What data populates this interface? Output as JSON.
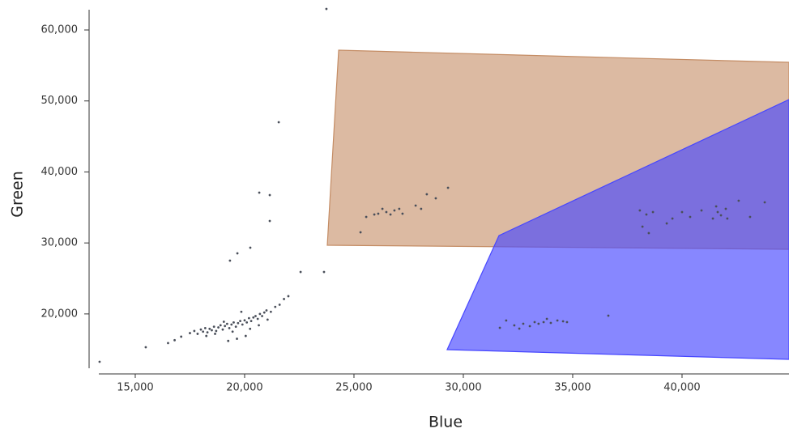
{
  "chart_data": {
    "type": "scatter",
    "x_label": "Blue",
    "y_label": "Green",
    "xlim": [
      12890,
      44890
    ],
    "ylim": [
      12690,
      63080
    ],
    "xticks": [
      {
        "value": 15000,
        "label": "15,000"
      },
      {
        "value": 20000,
        "label": "20,000"
      },
      {
        "value": 25000,
        "label": "25,000"
      },
      {
        "value": 30000,
        "label": "30,000"
      },
      {
        "value": 35000,
        "label": "35,000"
      },
      {
        "value": 40000,
        "label": "40,000"
      }
    ],
    "yticks": [
      {
        "value": 20000,
        "label": "20,000"
      },
      {
        "value": 30000,
        "label": "30,000"
      },
      {
        "value": 40000,
        "label": "40,000"
      },
      {
        "value": 50000,
        "label": "50,000"
      },
      {
        "value": 60000,
        "label": "60,000"
      }
    ],
    "gates": [
      {
        "color": "#c48c64",
        "x": [
          24300,
          44890,
          44890,
          23780
        ],
        "y": [
          57150,
          55440,
          29110,
          29680
        ]
      },
      {
        "color": "#4646ff",
        "x": [
          29260,
          31630,
          44890,
          44890
        ],
        "y": [
          14970,
          31040,
          50200,
          13600
        ]
      }
    ],
    "series": [
      {
        "color": "#4a4f5a",
        "x": [
          23740,
          21560,
          20670,
          21150,
          21150,
          20260,
          19670,
          19330,
          13370,
          15480,
          22560,
          23630,
          25300,
          25560,
          25930,
          26110,
          26300,
          26480,
          26670,
          26850,
          27070,
          27220,
          27820,
          28070,
          28330,
          28740,
          29300,
          38070,
          38190,
          38370,
          38480,
          38670,
          39300,
          39560,
          40000,
          40370,
          40890,
          41410,
          41560,
          41630,
          41780,
          42000,
          42070,
          42590,
          43110,
          43780,
          31670,
          31960,
          32330,
          32560,
          32740,
          33040,
          33260,
          33440,
          33670,
          33820,
          34000,
          34300,
          34560,
          34740,
          36630,
          17500,
          17700,
          17850,
          18000,
          18100,
          18200,
          18300,
          18400,
          18500,
          18600,
          18700,
          18800,
          18900,
          19000,
          19100,
          19200,
          19300,
          19400,
          19500,
          19600,
          19700,
          19800,
          19900,
          20000,
          20100,
          20200,
          20300,
          20400,
          20500,
          20600,
          20700,
          20800,
          20900,
          21000,
          21200,
          21400,
          21600,
          21800,
          22000,
          18250,
          18650,
          19050,
          19450,
          19850,
          20250,
          20650,
          21050,
          16500,
          16800,
          17100,
          19250,
          19650,
          20050
        ],
        "values": [
          62960,
          47000,
          37090,
          36740,
          33100,
          29330,
          28540,
          27510,
          13260,
          15310,
          25910,
          25910,
          31500,
          33670,
          34010,
          34120,
          34810,
          34350,
          34010,
          34580,
          34810,
          34120,
          35260,
          34810,
          36860,
          36290,
          37770,
          34580,
          32300,
          34010,
          31390,
          34350,
          32750,
          33440,
          34350,
          33670,
          34580,
          33440,
          35150,
          34350,
          33890,
          34810,
          33440,
          35950,
          33670,
          35720,
          18050,
          19070,
          18390,
          17930,
          18620,
          18280,
          18850,
          18620,
          18850,
          19300,
          18730,
          19070,
          18960,
          18850,
          19760,
          17300,
          17600,
          17200,
          17800,
          17500,
          18000,
          17400,
          17900,
          17700,
          18200,
          17600,
          18100,
          18400,
          17800,
          18300,
          18600,
          18000,
          18500,
          18800,
          18200,
          18700,
          19000,
          18500,
          19100,
          18800,
          19400,
          19000,
          19500,
          19700,
          19300,
          20000,
          19700,
          20200,
          20500,
          20300,
          21000,
          21300,
          22100,
          22500,
          16900,
          17200,
          18900,
          17500,
          20300,
          17900,
          18400,
          19200,
          15900,
          16300,
          16800,
          16200,
          16500,
          16900
        ]
      }
    ]
  }
}
